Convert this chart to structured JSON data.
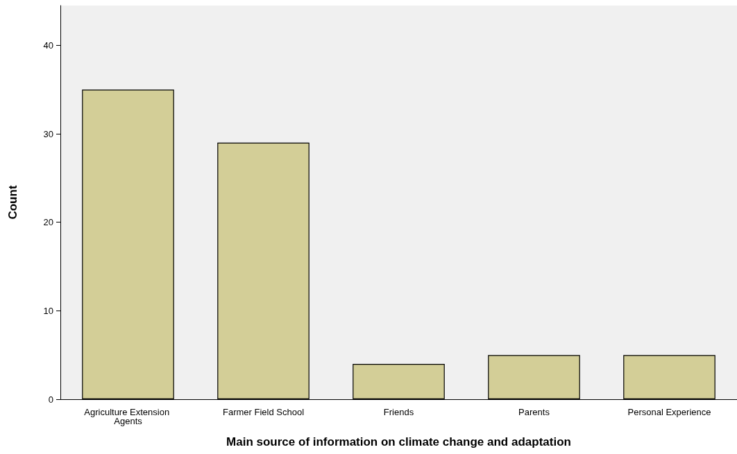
{
  "chart_data": {
    "type": "bar",
    "xlabel": "Main source of information on climate change and adaptation",
    "ylabel": "Count",
    "categories": [
      "Agriculture Extension Agents",
      "Farmer Field School",
      "Friends",
      "Parents",
      "Personal Experience"
    ],
    "values": [
      35,
      29,
      4,
      5,
      5
    ],
    "color": "#d3ce97",
    "ylim": [
      0,
      44.5
    ],
    "yticks": [
      0,
      10,
      20,
      30,
      40
    ],
    "grid": false
  }
}
